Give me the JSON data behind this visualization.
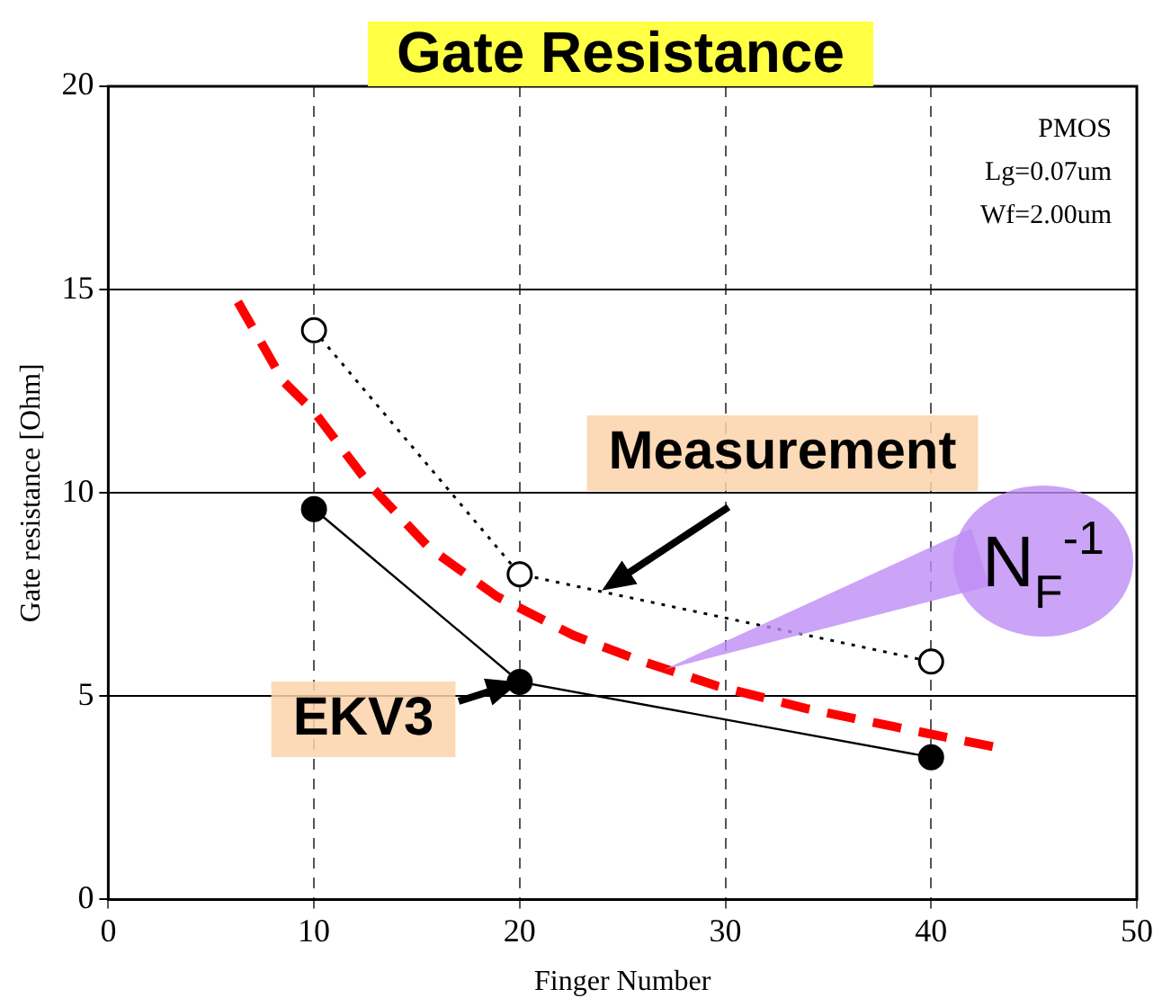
{
  "chart_data": {
    "type": "line",
    "title": "Gate Resistance",
    "xlabel": "Finger Number",
    "ylabel": "Gate resistance [Ohm]",
    "xlim": [
      0,
      50
    ],
    "xticks": [
      0,
      10,
      20,
      30,
      40,
      50
    ],
    "ylim": [
      0,
      20
    ],
    "yticks": [
      0,
      5,
      10,
      15,
      20
    ],
    "grid": true,
    "legend": false,
    "series": [
      {
        "color": "#000000",
        "marker": "circle",
        "line_style": "dotted",
        "x": [
          10,
          20,
          40
        ],
        "values": [
          14.0,
          8.0,
          5.85
        ]
      },
      {
        "color": "#000000",
        "marker": "circle",
        "line_style": "solid",
        "x": [
          10,
          20,
          40
        ],
        "values": [
          9.6,
          5.35,
          3.5
        ]
      },
      {
        "color": "#ff0000",
        "marker": "none",
        "line_style": "dashed",
        "x": [
          6.3,
          8.5,
          10,
          12.7,
          15.6,
          18.9,
          22.6,
          25.7,
          29.6,
          33.9,
          38.2,
          43.1
        ],
        "values": [
          14.7,
          12.75,
          12.0,
          10.2,
          8.65,
          7.45,
          6.5,
          5.9,
          5.25,
          4.7,
          4.25,
          3.75
        ]
      }
    ],
    "annotations": [
      "PMOS",
      "Lg=0.07um",
      "Wf=2.00um",
      {
        "text": "Measurement",
        "x": 24,
        "y": 7.6
      },
      {
        "text": "EKV3",
        "x": 20,
        "y": 5.35
      },
      {
        "text": "N$_{F}$$^{-1}$",
        "x": 27,
        "y": 5.65
      }
    ]
  }
}
